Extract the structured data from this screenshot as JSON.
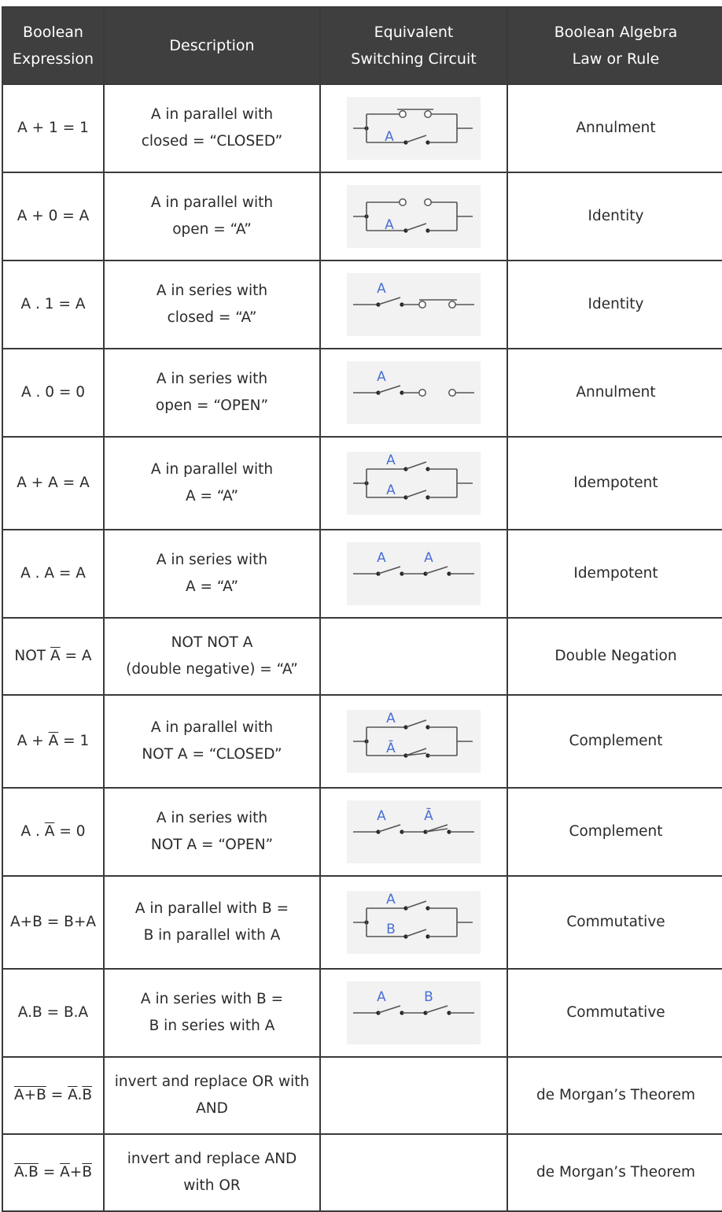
{
  "headers": {
    "expression": [
      "Boolean",
      "Expression"
    ],
    "description": "Description",
    "circuit": [
      "Equivalent",
      "Switching Circuit"
    ],
    "law": [
      "Boolean Algebra",
      "Law or Rule"
    ]
  },
  "rows": [
    {
      "expr": "A + 1 = 1",
      "desc": [
        "A in parallel with",
        "closed = “CLOSED”"
      ],
      "law": "Annulment",
      "circuit": {
        "type": "parallel-fixed-closed",
        "labels": [
          "A"
        ]
      }
    },
    {
      "expr": "A + 0 = A",
      "desc": [
        "A in parallel with",
        "open = “A”"
      ],
      "law": "Identity",
      "circuit": {
        "type": "parallel-fixed-open",
        "labels": [
          "A"
        ]
      }
    },
    {
      "expr": "A . 1 = A",
      "desc": [
        "A in series with",
        "closed = “A”"
      ],
      "law": "Identity",
      "circuit": {
        "type": "series-fixed-closed",
        "labels": [
          "A"
        ]
      }
    },
    {
      "expr": "A . 0 = 0",
      "desc": [
        "A in series with",
        "open = “OPEN”"
      ],
      "law": "Annulment",
      "circuit": {
        "type": "series-fixed-open",
        "labels": [
          "A"
        ]
      }
    },
    {
      "expr": "A + A = A",
      "desc": [
        "A in parallel with",
        "A = “A”"
      ],
      "law": "Idempotent",
      "circuit": {
        "type": "parallel-two",
        "labels": [
          "A",
          "A"
        ]
      }
    },
    {
      "expr": "A . A = A",
      "desc": [
        "A in series with",
        "A = “A”"
      ],
      "law": "Idempotent",
      "circuit": {
        "type": "series-two",
        "labels": [
          "A",
          "A"
        ]
      }
    },
    {
      "expr": "NOT A = A",
      "expr_parts": [
        "NOT ",
        "A",
        " = A"
      ],
      "desc": [
        "NOT NOT A",
        "(double negative) = “A”"
      ],
      "law": "Double Negation",
      "circuit": null
    },
    {
      "expr": "A + A = 1",
      "expr_parts": [
        "A + ",
        "A",
        " = 1"
      ],
      "desc": [
        "A in parallel with",
        "NOT A = “CLOSED”"
      ],
      "law": "Complement",
      "circuit": {
        "type": "parallel-two-complement",
        "labels": [
          "A",
          "Ā"
        ]
      }
    },
    {
      "expr": "A . A = 0",
      "expr_parts": [
        "A . ",
        "A",
        " = 0"
      ],
      "desc": [
        "A in series with",
        "NOT A = “OPEN”"
      ],
      "law": "Complement",
      "circuit": {
        "type": "series-two-complement",
        "labels": [
          "A",
          "Ā"
        ]
      }
    },
    {
      "expr": "A+B = B+A",
      "desc": [
        "A in parallel with B =",
        "B in parallel with A"
      ],
      "law": "Commutative",
      "circuit": {
        "type": "parallel-two",
        "labels": [
          "A",
          "B"
        ]
      }
    },
    {
      "expr": "A.B = B.A",
      "desc": [
        "A in series with B =",
        "B in series with A"
      ],
      "law": "Commutative",
      "circuit": {
        "type": "series-two",
        "labels": [
          "A",
          "B"
        ]
      }
    },
    {
      "expr": "A+B = A.B",
      "expr_parts": [
        "A+B",
        " = ",
        "A",
        ".",
        "B"
      ],
      "desc": [
        "invert and replace OR with",
        "AND"
      ],
      "law": "de Morgan’s Theorem",
      "circuit": null
    },
    {
      "expr": "A.B = A+B",
      "expr_parts": [
        "A.B",
        " = ",
        "A",
        "+",
        "B"
      ],
      "desc": [
        "invert and replace AND",
        "with OR"
      ],
      "law": "de Morgan’s Theorem",
      "circuit": null
    }
  ],
  "colors": {
    "header_bg": "#3f3f3f",
    "border": "#3a3a3a",
    "circuit_bg": "#f2f2f2",
    "label": "#4a6fd6",
    "wire": "#555555"
  }
}
